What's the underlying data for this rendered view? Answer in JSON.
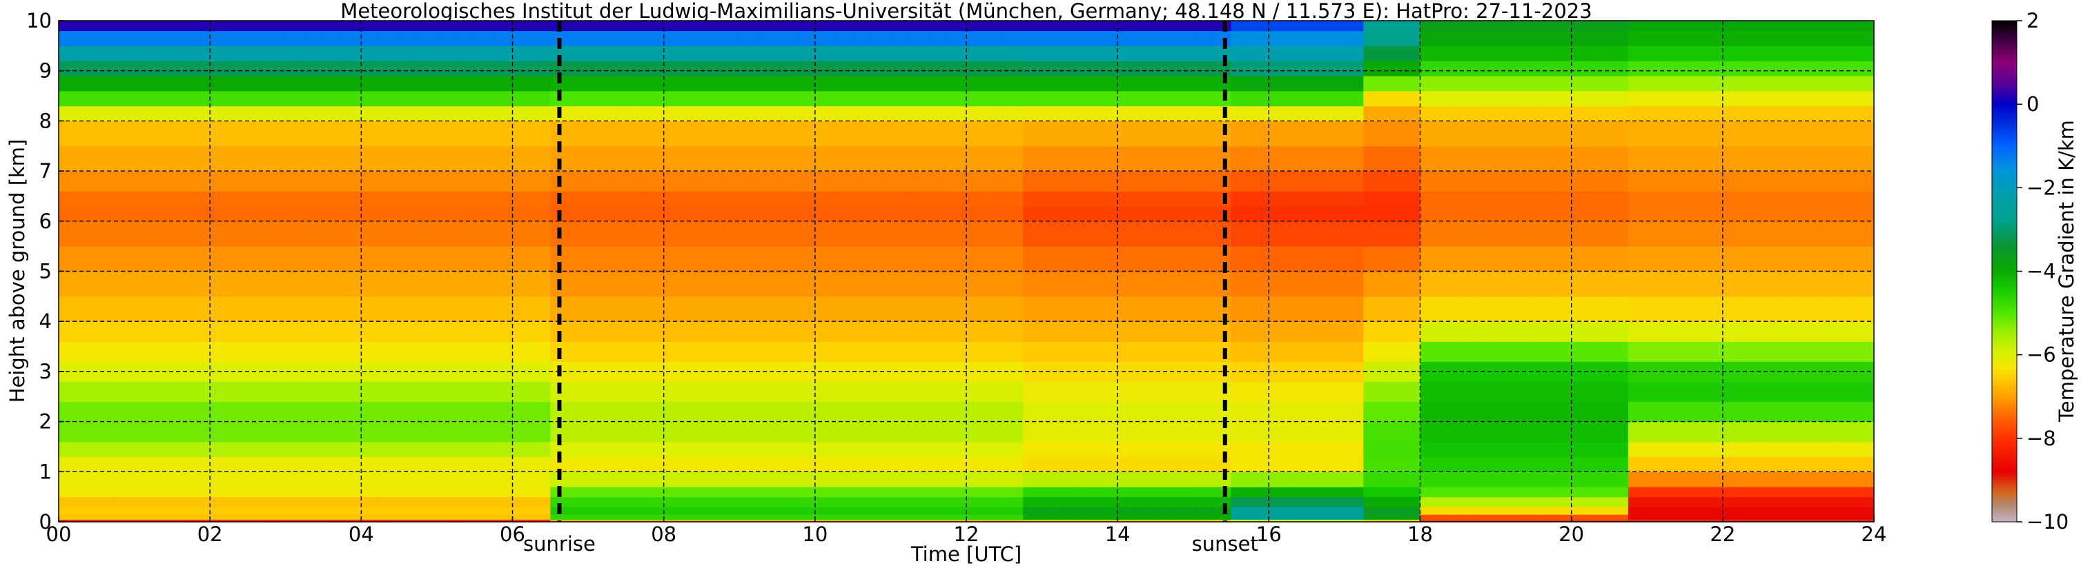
{
  "chart_data": {
    "type": "heatmap",
    "title": "Meteorologisches Institut der Ludwig-Maximilians-Universität (München, Germany; 48.148 N / 11.573 E):    HatPro: 27-11-2023",
    "xlabel": "Time [UTC]",
    "ylabel": "Height above ground [km]",
    "xlim": [
      0,
      24
    ],
    "ylim": [
      0,
      10
    ],
    "x_ticks": [
      {
        "value": 0,
        "label": "00"
      },
      {
        "value": 2,
        "label": "02"
      },
      {
        "value": 4,
        "label": "04"
      },
      {
        "value": 6,
        "label": "06"
      },
      {
        "value": 8,
        "label": "08"
      },
      {
        "value": 10,
        "label": "10"
      },
      {
        "value": 12,
        "label": "12"
      },
      {
        "value": 14,
        "label": "14"
      },
      {
        "value": 16,
        "label": "16"
      },
      {
        "value": 18,
        "label": "18"
      },
      {
        "value": 20,
        "label": "20"
      },
      {
        "value": 22,
        "label": "22"
      },
      {
        "value": 24,
        "label": "24"
      }
    ],
    "y_ticks": [
      {
        "value": 0,
        "label": "0"
      },
      {
        "value": 1,
        "label": "1"
      },
      {
        "value": 2,
        "label": "2"
      },
      {
        "value": 3,
        "label": "3"
      },
      {
        "value": 4,
        "label": "4"
      },
      {
        "value": 5,
        "label": "5"
      },
      {
        "value": 6,
        "label": "6"
      },
      {
        "value": 7,
        "label": "7"
      },
      {
        "value": 8,
        "label": "8"
      },
      {
        "value": 9,
        "label": "9"
      },
      {
        "value": 10,
        "label": "10"
      }
    ],
    "grid": true,
    "markers": [
      {
        "label": "sunrise",
        "x": 6.62
      },
      {
        "label": "sunset",
        "x": 15.42
      }
    ],
    "colorbar": {
      "label": "Temperature Gradient in K/km",
      "range": [
        -10,
        2
      ],
      "ticks": [
        {
          "value": 2,
          "label": "2"
        },
        {
          "value": 0,
          "label": "0"
        },
        {
          "value": -2,
          "label": "−2"
        },
        {
          "value": -4,
          "label": "−4"
        },
        {
          "value": -6,
          "label": "−6"
        },
        {
          "value": -8,
          "label": "−8"
        },
        {
          "value": -10,
          "label": "−10"
        }
      ],
      "color_stops": [
        {
          "value": -10,
          "color": "#c8b4c8"
        },
        {
          "value": -9.6,
          "color": "#b4876e"
        },
        {
          "value": -9.3,
          "color": "#d2691e"
        },
        {
          "value": -8.8,
          "color": "#e60000"
        },
        {
          "value": -8.0,
          "color": "#ff3200"
        },
        {
          "value": -7.5,
          "color": "#ff6400"
        },
        {
          "value": -7.0,
          "color": "#ffa000"
        },
        {
          "value": -6.6,
          "color": "#ffc800"
        },
        {
          "value": -6.3,
          "color": "#f5e600"
        },
        {
          "value": -6.0,
          "color": "#dcf000"
        },
        {
          "value": -5.5,
          "color": "#a0f000"
        },
        {
          "value": -5.0,
          "color": "#50e600"
        },
        {
          "value": -4.4,
          "color": "#14c800"
        },
        {
          "value": -4.0,
          "color": "#0aaa00"
        },
        {
          "value": -3.4,
          "color": "#0a9632"
        },
        {
          "value": -2.8,
          "color": "#00a08c"
        },
        {
          "value": -2.2,
          "color": "#00a0aa"
        },
        {
          "value": -1.6,
          "color": "#0096dc"
        },
        {
          "value": -1.0,
          "color": "#0064ff"
        },
        {
          "value": -0.4,
          "color": "#0028dc"
        },
        {
          "value": 0.0,
          "color": "#0000c8"
        },
        {
          "value": 0.5,
          "color": "#5a0096"
        },
        {
          "value": 1.0,
          "color": "#8c0078"
        },
        {
          "value": 1.5,
          "color": "#460046"
        },
        {
          "value": 2.0,
          "color": "#000000"
        }
      ]
    },
    "field": {
      "x_step_hours": 0.25,
      "y_levels_km": [
        0,
        0.05,
        0.15,
        0.3,
        0.5,
        0.7,
        1.0,
        1.3,
        1.6,
        2.0,
        2.4,
        2.8,
        3.2,
        3.6,
        4.0,
        4.5,
        5.0,
        5.5,
        6.0,
        6.3,
        6.6,
        7.0,
        7.5,
        8.0,
        8.3,
        8.6,
        8.9,
        9.2,
        9.5,
        9.8,
        10.0
      ],
      "segments": [
        {
          "t_start": 0,
          "t_end": 6.6,
          "profile": [
            -9.3,
            -7.0,
            -6.3,
            -6.8,
            -6.5,
            -6.0,
            -6.3,
            -6.0,
            -5.3,
            -5.1,
            -5.3,
            -5.8,
            -6.2,
            -6.4,
            -6.6,
            -6.8,
            -7.0,
            -7.2,
            -7.4,
            -7.5,
            -7.3,
            -7.0,
            -6.8,
            -6.6,
            -5.5,
            -4.2,
            -3.8,
            -2.5,
            -2.0,
            -0.6,
            1.0
          ]
        },
        {
          "t_start": 6.6,
          "t_end": 12.8,
          "profile": [
            -8.6,
            -5.0,
            -4.4,
            -4.6,
            -4.8,
            -5.4,
            -6.3,
            -6.2,
            -5.8,
            -5.6,
            -5.8,
            -6.1,
            -6.4,
            -6.6,
            -6.8,
            -7.0,
            -7.2,
            -7.3,
            -7.5,
            -7.6,
            -7.4,
            -7.1,
            -6.9,
            -6.7,
            -5.6,
            -4.3,
            -3.9,
            -2.6,
            -2.0,
            -0.6,
            1.0
          ]
        },
        {
          "t_start": 12.8,
          "t_end": 15.4,
          "profile": [
            -8.8,
            -4.4,
            -3.6,
            -4.0,
            -4.3,
            -5.0,
            -6.4,
            -6.4,
            -6.2,
            -6.0,
            -6.1,
            -6.3,
            -6.5,
            -6.7,
            -6.9,
            -7.1,
            -7.3,
            -7.5,
            -7.8,
            -7.9,
            -7.6,
            -7.3,
            -7.0,
            -6.8,
            -5.6,
            -4.3,
            -3.9,
            -2.5,
            -2.0,
            -0.6,
            1.0
          ]
        },
        {
          "t_start": 15.4,
          "t_end": 17.2,
          "profile": [
            -8.8,
            -3.0,
            -2.2,
            -2.8,
            -3.6,
            -4.6,
            -6.2,
            -6.4,
            -6.2,
            -6.0,
            -6.2,
            -6.4,
            -6.6,
            -6.8,
            -7.0,
            -7.2,
            -7.4,
            -7.6,
            -8.0,
            -8.1,
            -7.8,
            -7.4,
            -7.1,
            -6.9,
            -5.4,
            -4.2,
            -3.6,
            -2.3,
            -2.0,
            -1.0,
            -0.4
          ]
        },
        {
          "t_start": 17.2,
          "t_end": 18.0,
          "profile": [
            -9.0,
            -4.0,
            -3.4,
            -3.8,
            -4.2,
            -4.6,
            -4.9,
            -4.9,
            -4.8,
            -5.0,
            -5.2,
            -5.6,
            -6.1,
            -6.4,
            -6.6,
            -6.9,
            -7.2,
            -7.6,
            -8.0,
            -8.1,
            -7.9,
            -7.6,
            -7.3,
            -7.0,
            -6.8,
            -6.0,
            -4.4,
            -3.6,
            -3.0,
            -2.6,
            -2.8
          ]
        },
        {
          "t_start": 18.0,
          "t_end": 20.8,
          "profile": [
            -9.4,
            -8.8,
            -6.6,
            -6.2,
            -5.2,
            -4.8,
            -4.6,
            -4.4,
            -4.3,
            -4.2,
            -4.2,
            -4.3,
            -4.5,
            -5.6,
            -6.2,
            -6.6,
            -6.9,
            -7.2,
            -7.4,
            -7.5,
            -7.4,
            -7.2,
            -7.0,
            -6.8,
            -6.3,
            -5.8,
            -5.0,
            -4.4,
            -4.0,
            -3.8,
            -3.6
          ]
        },
        {
          "t_start": 20.8,
          "t_end": 24.0,
          "profile": [
            -9.4,
            -8.6,
            -8.8,
            -8.6,
            -8.4,
            -7.6,
            -6.8,
            -6.4,
            -6.0,
            -5.2,
            -4.5,
            -4.4,
            -4.8,
            -5.8,
            -6.3,
            -6.6,
            -6.9,
            -7.1,
            -7.3,
            -7.4,
            -7.3,
            -7.1,
            -6.9,
            -6.8,
            -6.4,
            -5.9,
            -5.2,
            -4.6,
            -4.2,
            -4.0,
            -3.8
          ]
        }
      ]
    }
  }
}
